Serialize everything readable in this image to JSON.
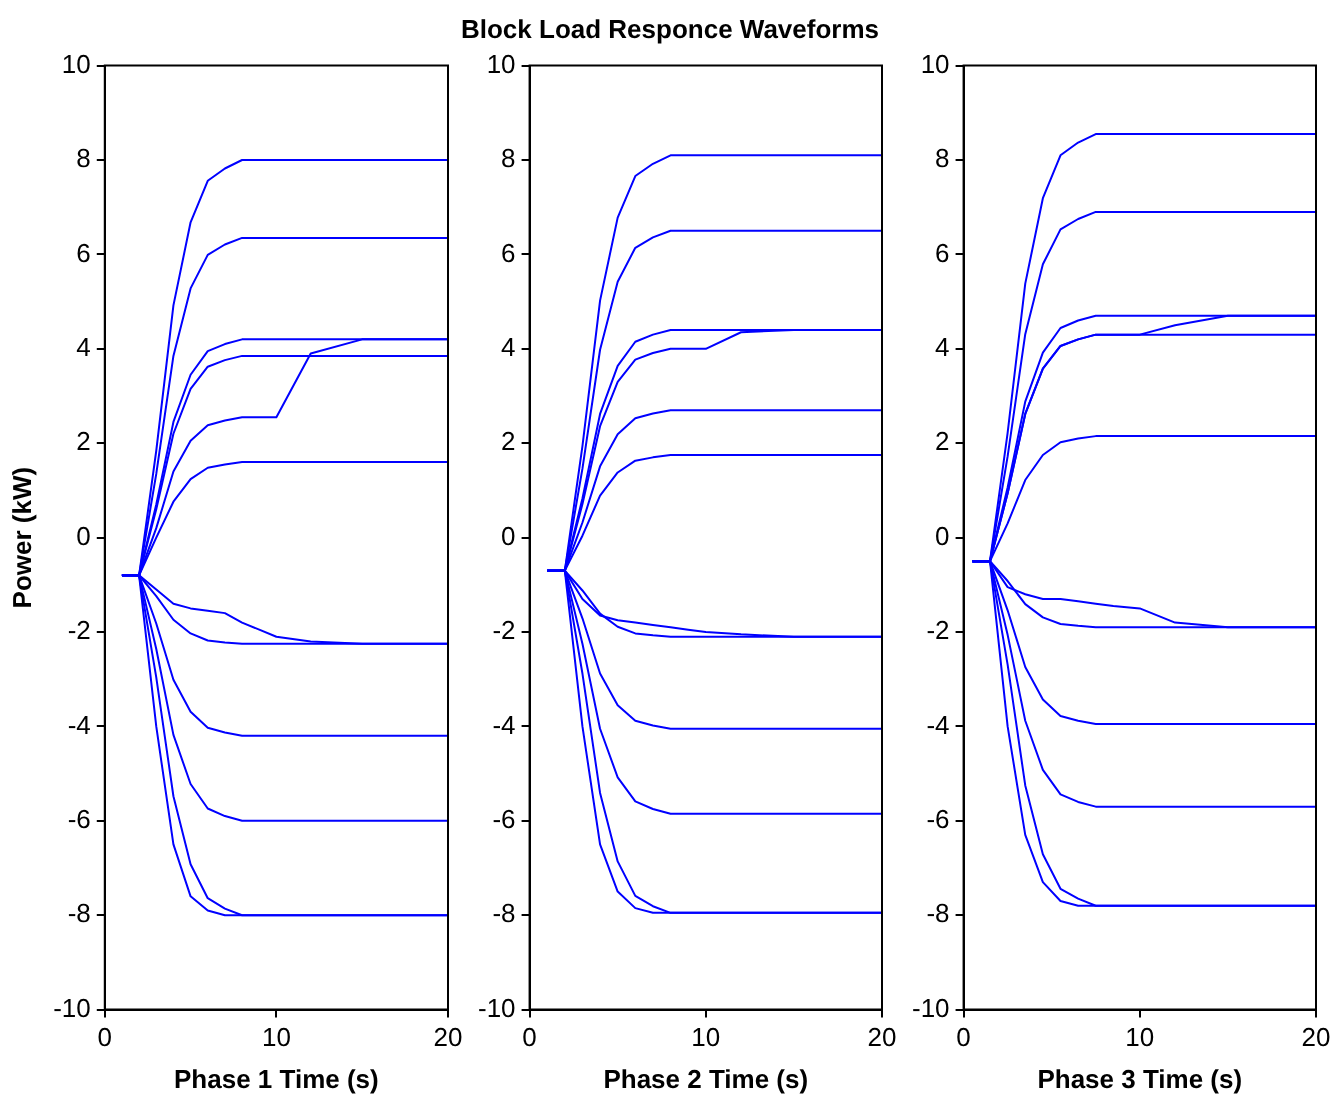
{
  "chart_data": [
    {
      "type": "line",
      "xlabel": "Phase 1 Time (s)",
      "ylabel": "Power (kW)",
      "x": [
        1,
        2,
        3,
        4,
        5,
        6,
        7,
        8,
        9,
        10,
        12,
        15,
        20
      ],
      "xlim": [
        0,
        20
      ],
      "xticks": [
        0,
        10,
        20
      ],
      "ylim": [
        -10,
        10
      ],
      "yticks": [
        -10,
        -8,
        -6,
        -4,
        -2,
        0,
        2,
        4,
        6,
        8,
        10
      ],
      "grid": false,
      "legend": false,
      "marker": "none",
      "line_style": "solid",
      "series": [
        {
          "color": "#0000ff",
          "values": [
            -0.8,
            -0.8,
            1.84,
            4.92,
            6.68,
            7.56,
            7.82,
            8,
            8,
            8,
            8,
            8,
            8
          ]
        },
        {
          "color": "#0000ff",
          "values": [
            -0.8,
            -0.8,
            1.35,
            3.85,
            5.28,
            5.99,
            6.21,
            6.35,
            6.35,
            6.35,
            6.35,
            6.35,
            6.35
          ]
        },
        {
          "color": "#0000ff",
          "values": [
            -0.8,
            -0.8,
            0.7,
            2.45,
            3.45,
            3.95,
            4.1,
            4.2,
            4.2,
            4.2,
            4.2,
            4.2,
            4.2
          ]
        },
        {
          "color": "#0000ff",
          "values": [
            -0.8,
            -0.8,
            0.6,
            2.2,
            3.15,
            3.62,
            3.76,
            3.85,
            3.85,
            3.85,
            3.85,
            3.85,
            3.85
          ]
        },
        {
          "color": "#0000ff",
          "values": [
            -0.8,
            -0.8,
            0.2,
            1.4,
            2.05,
            2.38,
            2.48,
            2.55,
            2.55,
            2.55,
            3.9,
            4.2,
            4.2
          ]
        },
        {
          "color": "#0000ff",
          "values": [
            -0.8,
            -0.8,
            0,
            0.76,
            1.24,
            1.48,
            1.55,
            1.6,
            1.6,
            1.6,
            1.6,
            1.6,
            1.6
          ]
        },
        {
          "color": "#0000ff",
          "values": [
            -0.8,
            -0.8,
            -1.24,
            -1.74,
            -2.03,
            -2.18,
            -2.22,
            -2.25,
            -2.25,
            -2.25,
            -2.25,
            -2.25,
            -2.25
          ]
        },
        {
          "color": "#0000ff",
          "values": [
            -0.8,
            -0.8,
            -1.1,
            -1.4,
            -1.5,
            -1.55,
            -1.6,
            -1.8,
            -1.95,
            -2.1,
            -2.2,
            -2.25,
            -2.25
          ]
        },
        {
          "color": "#0000ff",
          "values": [
            -0.8,
            -0.8,
            -1.82,
            -3.01,
            -3.69,
            -4.03,
            -4.13,
            -4.2,
            -4.2,
            -4.2,
            -4.2,
            -4.2,
            -4.2
          ]
        },
        {
          "color": "#0000ff",
          "values": [
            -0.8,
            -0.8,
            -2.36,
            -4.18,
            -5.22,
            -5.74,
            -5.9,
            -6,
            -6,
            -6,
            -6,
            -6,
            -6
          ]
        },
        {
          "color": "#0000ff",
          "values": [
            -0.8,
            -0.8,
            -2.96,
            -5.48,
            -6.92,
            -7.64,
            -7.86,
            -8,
            -8,
            -8,
            -8,
            -8,
            -8
          ]
        },
        {
          "color": "#0000ff",
          "values": [
            -0.8,
            -0.8,
            -4,
            -6.5,
            -7.6,
            -7.9,
            -8,
            -8,
            -8,
            -8,
            -8,
            -8,
            -8
          ]
        }
      ]
    },
    {
      "type": "line",
      "title": "Block Load Responce Waveforms",
      "xlabel": "Phase 2 Time (s)",
      "x": [
        1,
        2,
        3,
        4,
        5,
        6,
        7,
        8,
        9,
        10,
        12,
        15,
        20
      ],
      "xlim": [
        0,
        20
      ],
      "xticks": [
        0,
        10,
        20
      ],
      "ylim": [
        -10,
        10
      ],
      "yticks": [
        -10,
        -8,
        -6,
        -4,
        -2,
        0,
        2,
        4,
        6,
        8,
        10
      ],
      "grid": false,
      "legend": false,
      "marker": "none",
      "line_style": "solid",
      "series": [
        {
          "color": "#0000ff",
          "values": [
            -0.7,
            -0.7,
            1.94,
            5.02,
            6.78,
            7.66,
            7.92,
            8.1,
            8.1,
            8.1,
            8.1,
            8.1,
            8.1
          ]
        },
        {
          "color": "#0000ff",
          "values": [
            -0.7,
            -0.7,
            1.46,
            3.98,
            5.42,
            6.14,
            6.36,
            6.5,
            6.5,
            6.5,
            6.5,
            6.5,
            6.5
          ]
        },
        {
          "color": "#0000ff",
          "values": [
            -0.7,
            -0.7,
            0.83,
            2.62,
            3.64,
            4.15,
            4.3,
            4.4,
            4.4,
            4.4,
            4.4,
            4.4,
            4.4
          ]
        },
        {
          "color": "#0000ff",
          "values": [
            -0.7,
            -0.7,
            0.71,
            2.36,
            3.3,
            3.77,
            3.91,
            4,
            4,
            4,
            4.35,
            4.4,
            4.4
          ]
        },
        {
          "color": "#0000ff",
          "values": [
            -0.7,
            -0.7,
            0.32,
            1.51,
            2.19,
            2.53,
            2.63,
            2.7,
            2.7,
            2.7,
            2.7,
            2.7,
            2.7
          ]
        },
        {
          "color": "#0000ff",
          "values": [
            -0.7,
            -0.7,
            0.04,
            0.89,
            1.38,
            1.63,
            1.7,
            1.75,
            1.75,
            1.75,
            1.75,
            1.75,
            1.75
          ]
        },
        {
          "color": "#0000ff",
          "values": [
            -0.7,
            -0.7,
            -1.12,
            -1.61,
            -1.89,
            -2.03,
            -2.07,
            -2.1,
            -2.1,
            -2.1,
            -2.1,
            -2.1,
            -2.1
          ]
        },
        {
          "color": "#0000ff",
          "values": [
            -0.7,
            -0.7,
            -1.3,
            -1.65,
            -1.75,
            -1.8,
            -1.85,
            -1.9,
            -1.95,
            -2,
            -2.05,
            -2.1,
            -2.1
          ]
        },
        {
          "color": "#0000ff",
          "values": [
            -0.7,
            -0.7,
            -1.71,
            -2.88,
            -3.55,
            -3.88,
            -3.98,
            -4.05,
            -4.05,
            -4.05,
            -4.05,
            -4.05,
            -4.05
          ]
        },
        {
          "color": "#0000ff",
          "values": [
            -0.7,
            -0.7,
            -2.25,
            -4.05,
            -5.08,
            -5.59,
            -5.75,
            -5.85,
            -5.85,
            -5.85,
            -5.85,
            -5.85,
            -5.85
          ]
        },
        {
          "color": "#0000ff",
          "values": [
            -0.7,
            -0.7,
            -2.88,
            -5.41,
            -6.86,
            -7.59,
            -7.81,
            -7.95,
            -7.95,
            -7.95,
            -7.95,
            -7.95,
            -7.95
          ]
        },
        {
          "color": "#0000ff",
          "values": [
            -0.7,
            -0.7,
            -4,
            -6.5,
            -7.5,
            -7.85,
            -7.95,
            -7.95,
            -7.95,
            -7.95,
            -7.95,
            -7.95,
            -7.95
          ]
        }
      ]
    },
    {
      "type": "line",
      "xlabel": "Phase 3 Time (s)",
      "x": [
        0.5,
        1.5,
        2.5,
        3.5,
        4.5,
        5.5,
        6.5,
        7.5,
        8.5,
        10,
        12,
        15,
        20
      ],
      "xlim": [
        0,
        20
      ],
      "xticks": [
        0,
        10,
        20
      ],
      "ylim": [
        -10,
        10
      ],
      "yticks": [
        -10,
        -8,
        -6,
        -4,
        -2,
        0,
        2,
        4,
        6,
        8,
        10
      ],
      "grid": false,
      "legend": false,
      "marker": "none",
      "line_style": "solid",
      "series": [
        {
          "color": "#0000ff",
          "values": [
            -0.5,
            -0.5,
            2.22,
            5.38,
            7.19,
            8.1,
            8.37,
            8.55,
            8.55,
            8.55,
            8.55,
            8.55,
            8.55
          ]
        },
        {
          "color": "#0000ff",
          "values": [
            -0.5,
            -0.5,
            1.72,
            4.31,
            5.79,
            6.53,
            6.75,
            6.9,
            6.9,
            6.9,
            6.9,
            6.9,
            6.9
          ]
        },
        {
          "color": "#0000ff",
          "values": [
            -0.5,
            -0.5,
            1.06,
            2.88,
            3.92,
            4.44,
            4.6,
            4.7,
            4.7,
            4.7,
            4.7,
            4.7,
            4.7
          ]
        },
        {
          "color": "#0000ff",
          "values": [
            -0.5,
            -0.5,
            0.94,
            2.62,
            3.58,
            4.06,
            4.2,
            4.3,
            4.3,
            4.3,
            4.5,
            4.7,
            4.7
          ]
        },
        {
          "color": "#0000ff",
          "values": [
            -0.5,
            -0.5,
            0.94,
            2.62,
            3.58,
            4.06,
            4.2,
            4.3,
            4.3,
            4.3,
            4.3,
            4.3,
            4.3
          ]
        },
        {
          "color": "#0000ff",
          "values": [
            -0.5,
            -0.5,
            0.3,
            1.22,
            1.75,
            2.02,
            2.1,
            2.15,
            2.15,
            2.15,
            2.15,
            2.15,
            2.15
          ]
        },
        {
          "color": "#0000ff",
          "values": [
            -0.5,
            -0.5,
            -0.92,
            -1.41,
            -1.69,
            -1.83,
            -1.87,
            -1.9,
            -1.9,
            -1.9,
            -1.9,
            -1.9,
            -1.9
          ]
        },
        {
          "color": "#0000ff",
          "values": [
            -0.5,
            -0.5,
            -1.05,
            -1.2,
            -1.3,
            -1.3,
            -1.35,
            -1.4,
            -1.45,
            -1.5,
            -1.8,
            -1.9,
            -1.9
          ]
        },
        {
          "color": "#0000ff",
          "values": [
            -0.5,
            -0.5,
            -1.54,
            -2.74,
            -3.43,
            -3.78,
            -3.88,
            -3.95,
            -3.95,
            -3.95,
            -3.95,
            -3.95,
            -3.95
          ]
        },
        {
          "color": "#0000ff",
          "values": [
            -0.5,
            -0.5,
            -2.06,
            -3.88,
            -4.92,
            -5.44,
            -5.6,
            -5.7,
            -5.7,
            -5.7,
            -5.7,
            -5.7,
            -5.7
          ]
        },
        {
          "color": "#0000ff",
          "values": [
            -0.5,
            -0.5,
            -2.69,
            -5.25,
            -6.71,
            -7.44,
            -7.65,
            -7.8,
            -7.8,
            -7.8,
            -7.8,
            -7.8,
            -7.8
          ]
        },
        {
          "color": "#0000ff",
          "values": [
            -0.5,
            -0.5,
            -4,
            -6.3,
            -7.3,
            -7.7,
            -7.8,
            -7.8,
            -7.8,
            -7.8,
            -7.8,
            -7.8,
            -7.8
          ]
        }
      ]
    }
  ]
}
